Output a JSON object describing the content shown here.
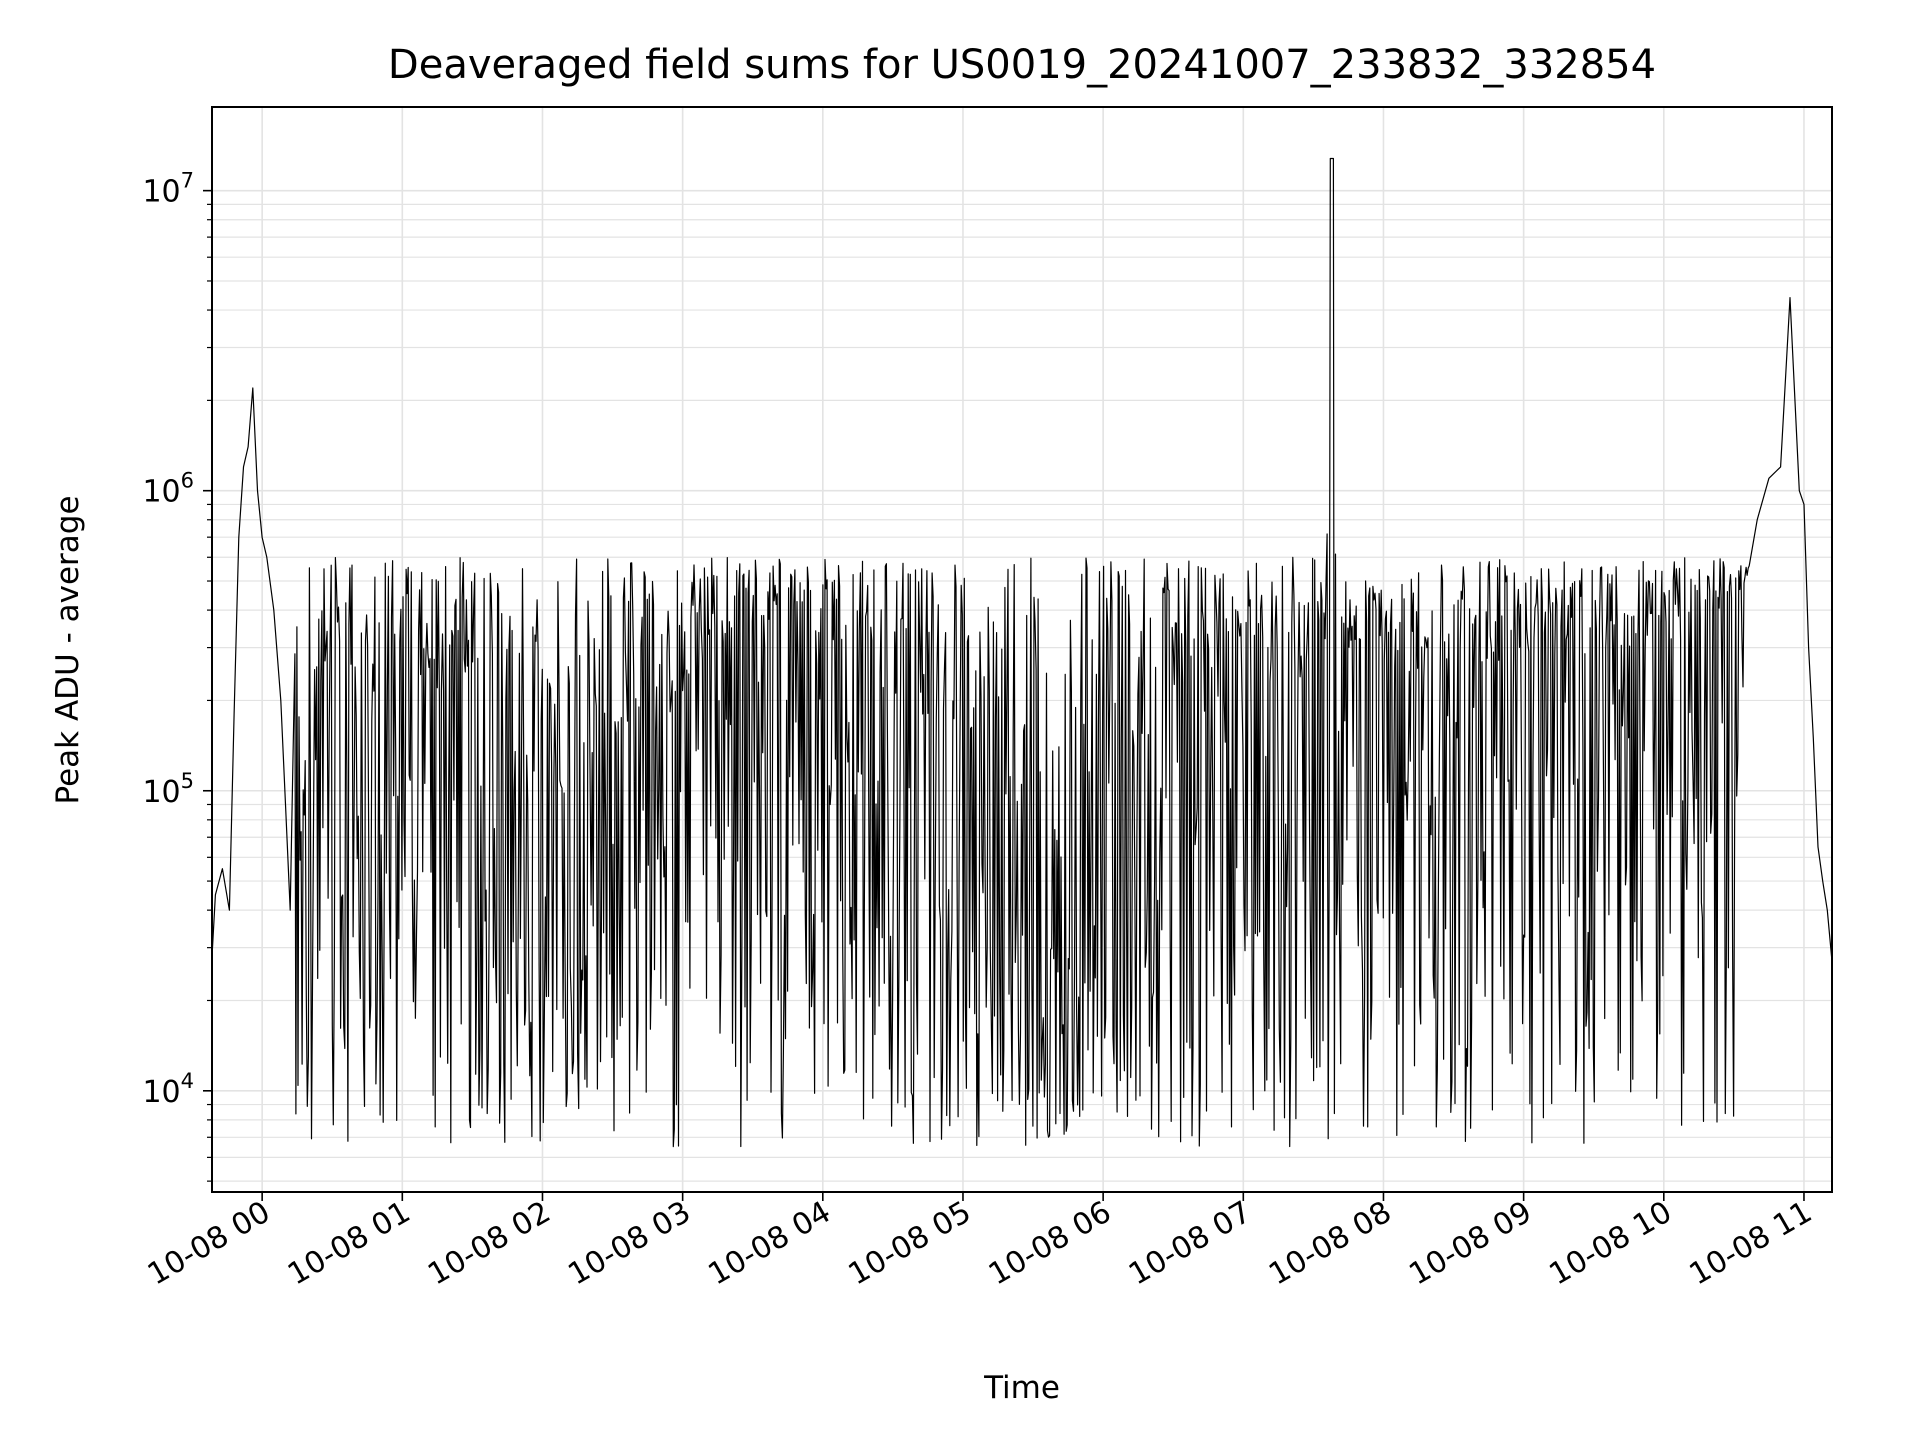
{
  "chart_data": {
    "type": "line",
    "title": "Deaveraged field sums for US0019_20241007_233832_332854",
    "xlabel": "Time",
    "ylabel": "Peak ADU - average",
    "yscale": "log",
    "xlim": [
      "2024-10-07 23:38:32",
      "2024-10-08 11:12:00"
    ],
    "ylim": [
      4600,
      19000000
    ],
    "grid": true,
    "legend": "none",
    "line_color": "#000000",
    "grid_color": "#e3e3e3",
    "x_ticks": [
      {
        "value": "2024-10-08 00:00",
        "label": "10-08 00"
      },
      {
        "value": "2024-10-08 01:00",
        "label": "10-08 01"
      },
      {
        "value": "2024-10-08 02:00",
        "label": "10-08 02"
      },
      {
        "value": "2024-10-08 03:00",
        "label": "10-08 03"
      },
      {
        "value": "2024-10-08 04:00",
        "label": "10-08 04"
      },
      {
        "value": "2024-10-08 05:00",
        "label": "10-08 05"
      },
      {
        "value": "2024-10-08 06:00",
        "label": "10-08 06"
      },
      {
        "value": "2024-10-08 07:00",
        "label": "10-08 07"
      },
      {
        "value": "2024-10-08 08:00",
        "label": "10-08 08"
      },
      {
        "value": "2024-10-08 09:00",
        "label": "10-08 09"
      },
      {
        "value": "2024-10-08 10:00",
        "label": "10-08 10"
      },
      {
        "value": "2024-10-08 11:00",
        "label": "10-08 11"
      }
    ],
    "y_ticks": [
      {
        "value": 10000,
        "base": "10",
        "exp": "4"
      },
      {
        "value": 100000,
        "base": "10",
        "exp": "5"
      },
      {
        "value": 1000000,
        "base": "10",
        "exp": "6"
      },
      {
        "value": 10000000,
        "base": "10",
        "exp": "7"
      }
    ],
    "series": [
      {
        "x": [
          "2024-10-07 23:38:32",
          "2024-10-07 23:40",
          "2024-10-07 23:43",
          "2024-10-07 23:46",
          "2024-10-07 23:48",
          "2024-10-07 23:50",
          "2024-10-07 23:52",
          "2024-10-07 23:54",
          "2024-10-07 23:56",
          "2024-10-07 23:58",
          "2024-10-08 00:00",
          "2024-10-08 00:02",
          "2024-10-08 00:05",
          "2024-10-08 00:08",
          "2024-10-08 00:10",
          "2024-10-08 00:12",
          "2024-10-08 00:15",
          "2024-10-08 00:20",
          "2024-10-08 00:30",
          "2024-10-08 00:45",
          "2024-10-08 01:00",
          "2024-10-08 01:15",
          "2024-10-08 01:30",
          "2024-10-08 01:45",
          "2024-10-08 02:00",
          "2024-10-08 02:15",
          "2024-10-08 02:30",
          "2024-10-08 02:45",
          "2024-10-08 03:00",
          "2024-10-08 03:15",
          "2024-10-08 03:30",
          "2024-10-08 03:45",
          "2024-10-08 04:00",
          "2024-10-08 04:15",
          "2024-10-08 04:30",
          "2024-10-08 04:45",
          "2024-10-08 05:00",
          "2024-10-08 05:15",
          "2024-10-08 05:30",
          "2024-10-08 05:45",
          "2024-10-08 06:00",
          "2024-10-08 06:15",
          "2024-10-08 06:30",
          "2024-10-08 06:45",
          "2024-10-08 07:00",
          "2024-10-08 07:15",
          "2024-10-08 07:30",
          "2024-10-08 07:35",
          "2024-10-08 07:38",
          "2024-10-08 07:40",
          "2024-10-08 07:45",
          "2024-10-08 08:00",
          "2024-10-08 08:15",
          "2024-10-08 08:30",
          "2024-10-08 08:45",
          "2024-10-08 09:00",
          "2024-10-08 09:15",
          "2024-10-08 09:30",
          "2024-10-08 09:45",
          "2024-10-08 10:00",
          "2024-10-08 10:15",
          "2024-10-08 10:25",
          "2024-10-08 10:35",
          "2024-10-08 10:40",
          "2024-10-08 10:45",
          "2024-10-08 10:50",
          "2024-10-08 10:54",
          "2024-10-08 10:58",
          "2024-10-08 11:00",
          "2024-10-08 11:02",
          "2024-10-08 11:04",
          "2024-10-08 11:06",
          "2024-10-08 11:08",
          "2024-10-08 11:10",
          "2024-10-08 11:12"
        ],
        "y": [
          28000,
          45000,
          55000,
          40000,
          180000,
          700000,
          1200000,
          1400000,
          2200000,
          1000000,
          700000,
          600000,
          400000,
          200000,
          90000,
          40000,
          30000,
          25000,
          280000,
          90000,
          250000,
          140000,
          200000,
          60000,
          50000,
          40000,
          110000,
          100000,
          150000,
          250000,
          300000,
          330000,
          280000,
          220000,
          150000,
          120000,
          80000,
          60000,
          40000,
          30000,
          40000,
          90000,
          150000,
          200000,
          250000,
          150000,
          180000,
          250000,
          12800000,
          200000,
          250000,
          220000,
          180000,
          230000,
          210000,
          200000,
          220000,
          230000,
          240000,
          260000,
          280000,
          330000,
          450000,
          800000,
          1100000,
          1200000,
          4400000,
          1000000,
          900000,
          300000,
          150000,
          65000,
          50000,
          40000,
          27000
        ]
      }
    ],
    "noise": {
      "upper_envelope": 600000,
      "lower_envelope": 6500,
      "sample_count": 1400
    }
  }
}
